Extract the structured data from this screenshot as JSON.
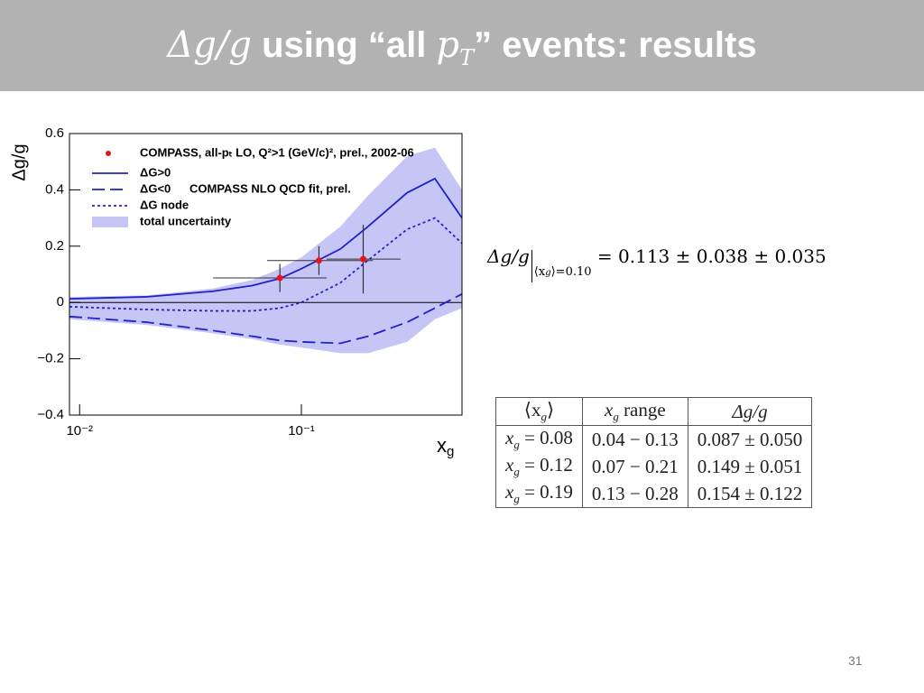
{
  "title": [
    "Δg/g",
    " using “all ",
    "p",
    "T",
    "” events: results"
  ],
  "chart_data": {
    "type": "scatter",
    "xscale": "log",
    "legend": "top-left",
    "ylabel": "Δg/g",
    "xlabel": [
      "x",
      "g"
    ],
    "annotation": "COMPASS NLO QCD fit, prel.",
    "xlim": [
      0.009,
      0.53
    ],
    "ylim": [
      -0.4,
      0.6
    ],
    "xticks": [
      {
        "value": 0.01,
        "label": "10⁻²"
      },
      {
        "value": 0.1,
        "label": "10⁻¹"
      }
    ],
    "yticks": [
      {
        "value": -0.4,
        "label": "−0.4"
      },
      {
        "value": -0.2,
        "label": "−0.2"
      },
      0,
      0.2,
      0.4,
      0.6
    ],
    "x": [
      0.009,
      0.02,
      0.04,
      0.06,
      0.08,
      0.1,
      0.15,
      0.2,
      0.3,
      0.4,
      0.53
    ],
    "series": [
      {
        "name": "COMPASS, all-pₜ LO, Q²>1 (GeV/c)², prel., 2002-06",
        "color": "#e8141b",
        "x": [
          0.08,
          0.12,
          0.19
        ],
        "values": [
          0.087,
          0.149,
          0.154
        ],
        "errors": [
          0.05,
          0.051,
          0.122
        ],
        "xlow": [
          0.04,
          0.07,
          0.13
        ],
        "xhigh": [
          0.13,
          0.21,
          0.28
        ]
      },
      {
        "name": "ΔG>0",
        "color": "#2121c8",
        "dash": "solid",
        "values": [
          0.013,
          0.02,
          0.04,
          0.06,
          0.085,
          0.12,
          0.19,
          0.27,
          0.39,
          0.44,
          0.3
        ]
      },
      {
        "name": "ΔG<0",
        "color": "#2121c8",
        "dash": "long",
        "values": [
          -0.05,
          -0.07,
          -0.1,
          -0.12,
          -0.135,
          -0.14,
          -0.145,
          -0.12,
          -0.07,
          -0.02,
          0.03
        ]
      },
      {
        "name": "ΔG node",
        "color": "#2121c8",
        "dash": "dotted",
        "values": [
          -0.015,
          -0.025,
          -0.03,
          -0.03,
          -0.02,
          0,
          0.07,
          0.15,
          0.26,
          0.3,
          0.21
        ]
      },
      {
        "name": "total uncertainty",
        "color": "#c6c6f6",
        "low": [
          -0.06,
          -0.08,
          -0.11,
          -0.13,
          -0.15,
          -0.16,
          -0.18,
          -0.18,
          -0.14,
          -0.06,
          -0.02
        ],
        "high": [
          0.02,
          0.025,
          0.05,
          0.08,
          0.12,
          0.16,
          0.27,
          0.38,
          0.52,
          0.55,
          0.4
        ]
      }
    ]
  },
  "formula": {
    "lhs": "Δg/g",
    "sub": "⟨x",
    "subsub": "g",
    "subrest": "⟩=0.10",
    "rhs": "= 0.113 ± 0.038 ± 0.035"
  },
  "table": {
    "header": [
      [
        "⟨x",
        "g",
        "⟩"
      ],
      [
        "x",
        "g",
        " range"
      ],
      [
        "Δg/g"
      ]
    ],
    "rows": [
      [
        [
          "x",
          "g",
          " = 0.08"
        ],
        [
          "0.04 − 0.13"
        ],
        [
          "0.087 ± 0.050"
        ]
      ],
      [
        [
          "x",
          "g",
          " = 0.12"
        ],
        [
          "0.07 − 0.21"
        ],
        [
          "0.149 ± 0.051"
        ]
      ],
      [
        [
          "x",
          "g",
          " = 0.19"
        ],
        [
          "0.13 − 0.28"
        ],
        [
          "0.154 ± 0.122"
        ]
      ]
    ]
  },
  "page_number": "31"
}
